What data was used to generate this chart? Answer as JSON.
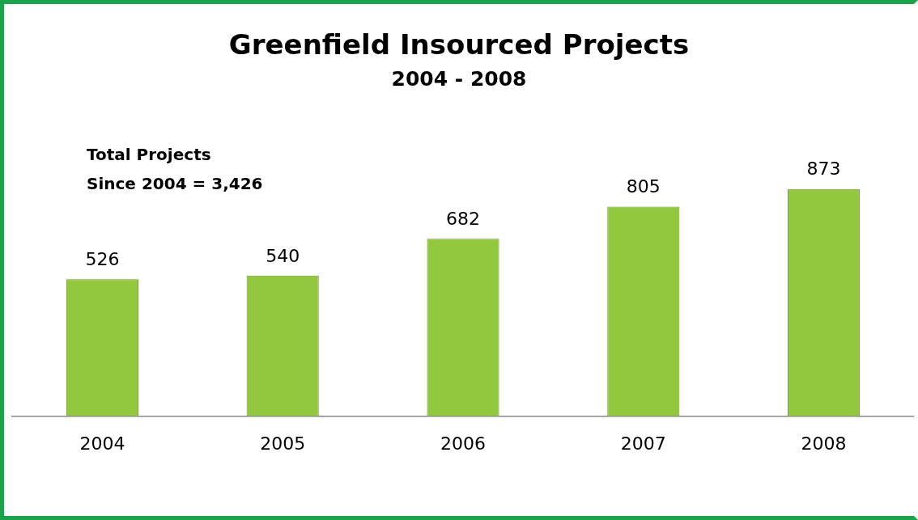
{
  "chart_data": {
    "type": "bar",
    "title": "Greenfield Insourced Projects",
    "subtitle": "2004 - 2008",
    "categories": [
      "2004",
      "2005",
      "2006",
      "2007",
      "2008"
    ],
    "values": [
      526,
      540,
      682,
      805,
      873
    ],
    "color": "#92c83e",
    "data_labels": true,
    "grid": false,
    "legend": false,
    "annotations": [
      "Total  Projects\nSince 2004 =  3,426"
    ]
  }
}
